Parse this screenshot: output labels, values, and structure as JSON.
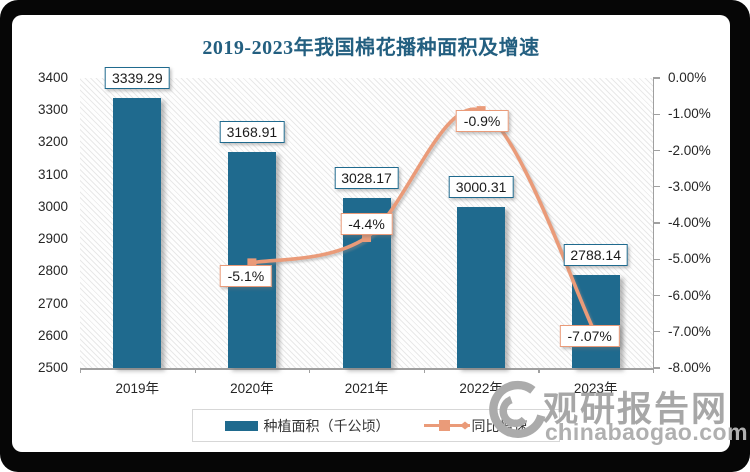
{
  "chart_data": {
    "type": "bar+line combo",
    "title": "2019-2023年我国棉花播种面积及增速",
    "categories": [
      "2019年",
      "2020年",
      "2021年",
      "2022年",
      "2023年"
    ],
    "series": [
      {
        "name": "种植面积（千公顷）",
        "type": "bar",
        "axis": "left",
        "color": "#1F6A8E",
        "values": [
          3339.29,
          3168.91,
          3028.17,
          3000.31,
          2788.14
        ],
        "labels": [
          "3339.29",
          "3168.91",
          "3028.17",
          "3000.31",
          "2788.14"
        ]
      },
      {
        "name": "同比增速",
        "type": "line",
        "axis": "right",
        "color": "#EA9B79",
        "values": [
          null,
          -5.1,
          -4.4,
          -0.9,
          -7.07
        ],
        "labels": [
          null,
          "-5.1%",
          "-4.4%",
          "-0.9%",
          "-7.07%"
        ]
      }
    ],
    "left_axis": {
      "min": 2500,
      "max": 3400,
      "step": 100,
      "ticks": [
        "3400",
        "3300",
        "3200",
        "3100",
        "3000",
        "2900",
        "2800",
        "2700",
        "2600",
        "2500"
      ]
    },
    "right_axis": {
      "min": -8,
      "max": 0,
      "step": 1,
      "ticks": [
        "0.00%",
        "-1.00%",
        "-2.00%",
        "-3.00%",
        "-4.00%",
        "-5.00%",
        "-6.00%",
        "-7.00%",
        "-8.00%"
      ]
    },
    "grid": "hatched plot background, no gridlines",
    "legend_position": "bottom"
  },
  "legend": {
    "items": [
      {
        "label": "种植面积（千公顷）"
      },
      {
        "label": "同比增速"
      }
    ]
  },
  "watermark": {
    "name": "观研报告网",
    "domain": "chinabaogao.com"
  }
}
